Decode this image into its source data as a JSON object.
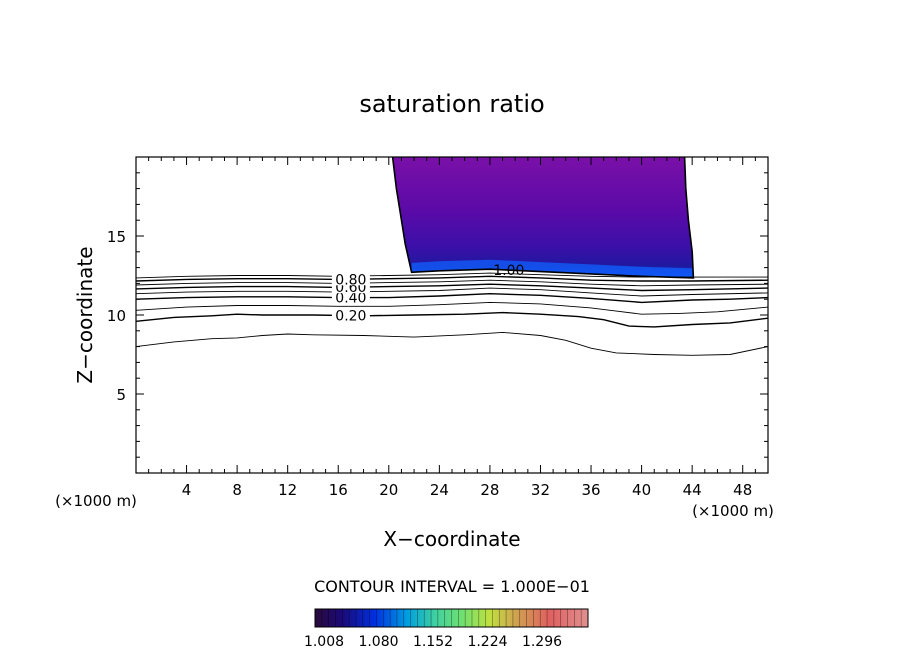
{
  "chart_data": {
    "type": "contour",
    "title": "saturation ratio",
    "xlabel": "X−coordinate",
    "ylabel": "Z−coordinate",
    "x_unit_left": "(×1000 m)",
    "x_unit_right": "(×1000 m)",
    "xlim": [
      0,
      50
    ],
    "ylim": [
      0,
      20
    ],
    "x_ticks": [
      4,
      8,
      12,
      16,
      20,
      24,
      28,
      32,
      36,
      40,
      44,
      48
    ],
    "x_tick_labels": [
      "4",
      "8",
      "12",
      "16",
      "20",
      "24",
      "28",
      "32",
      "36",
      "40",
      "44",
      "48"
    ],
    "y_ticks": [
      5,
      10,
      15
    ],
    "y_tick_labels": [
      "5",
      "10",
      "15"
    ],
    "contour_interval_text": "CONTOUR INTERVAL = 1.000E−01",
    "contour_levels": [
      {
        "value": 0.1,
        "label": "",
        "points": [
          [
            0,
            8.0
          ],
          [
            3,
            8.3
          ],
          [
            6,
            8.5
          ],
          [
            8,
            8.55
          ],
          [
            10,
            8.7
          ],
          [
            12,
            8.8
          ],
          [
            14,
            8.75
          ],
          [
            18,
            8.7
          ],
          [
            22,
            8.6
          ],
          [
            26,
            8.75
          ],
          [
            29,
            8.9
          ],
          [
            32,
            8.7
          ],
          [
            34,
            8.4
          ],
          [
            36,
            7.9
          ],
          [
            38,
            7.6
          ],
          [
            41,
            7.5
          ],
          [
            44,
            7.45
          ],
          [
            47,
            7.5
          ],
          [
            50,
            8.0
          ]
        ]
      },
      {
        "value": 0.2,
        "label": "0.20",
        "points": [
          [
            0,
            9.6
          ],
          [
            3,
            9.85
          ],
          [
            6,
            9.95
          ],
          [
            8,
            10.05
          ],
          [
            10,
            10.0
          ],
          [
            14,
            10.0
          ],
          [
            18,
            9.95
          ],
          [
            22,
            10.0
          ],
          [
            26,
            10.05
          ],
          [
            29,
            10.15
          ],
          [
            32,
            10.05
          ],
          [
            35,
            9.9
          ],
          [
            37,
            9.7
          ],
          [
            39,
            9.3
          ],
          [
            41,
            9.25
          ],
          [
            44,
            9.4
          ],
          [
            47,
            9.5
          ],
          [
            50,
            9.8
          ]
        ]
      },
      {
        "value": 0.3,
        "label": "",
        "points": [
          [
            0,
            10.3
          ],
          [
            4,
            10.5
          ],
          [
            8,
            10.6
          ],
          [
            12,
            10.6
          ],
          [
            16,
            10.55
          ],
          [
            20,
            10.55
          ],
          [
            24,
            10.65
          ],
          [
            28,
            10.8
          ],
          [
            32,
            10.7
          ],
          [
            36,
            10.45
          ],
          [
            38,
            10.25
          ],
          [
            40,
            10.05
          ],
          [
            43,
            10.1
          ],
          [
            46,
            10.2
          ],
          [
            50,
            10.5
          ]
        ]
      },
      {
        "value": 0.4,
        "label": "0.40",
        "points": [
          [
            0,
            11.0
          ],
          [
            4,
            11.1
          ],
          [
            8,
            11.15
          ],
          [
            12,
            11.15
          ],
          [
            16,
            11.1
          ],
          [
            20,
            11.1
          ],
          [
            24,
            11.2
          ],
          [
            28,
            11.35
          ],
          [
            32,
            11.25
          ],
          [
            36,
            11.05
          ],
          [
            40,
            10.8
          ],
          [
            44,
            10.95
          ],
          [
            47,
            11.0
          ],
          [
            50,
            11.1
          ]
        ]
      },
      {
        "value": 0.5,
        "label": "",
        "points": [
          [
            0,
            11.35
          ],
          [
            4,
            11.45
          ],
          [
            8,
            11.5
          ],
          [
            12,
            11.5
          ],
          [
            16,
            11.45
          ],
          [
            20,
            11.5
          ],
          [
            24,
            11.55
          ],
          [
            28,
            11.7
          ],
          [
            32,
            11.6
          ],
          [
            36,
            11.4
          ],
          [
            40,
            11.2
          ],
          [
            44,
            11.3
          ],
          [
            50,
            11.4
          ]
        ]
      },
      {
        "value": 0.6,
        "label": "0.60",
        "points": [
          [
            0,
            11.65
          ],
          [
            4,
            11.75
          ],
          [
            8,
            11.8
          ],
          [
            12,
            11.8
          ],
          [
            16,
            11.75
          ],
          [
            20,
            11.8
          ],
          [
            24,
            11.85
          ],
          [
            28,
            11.95
          ],
          [
            32,
            11.85
          ],
          [
            36,
            11.7
          ],
          [
            40,
            11.55
          ],
          [
            44,
            11.6
          ],
          [
            50,
            11.7
          ]
        ]
      },
      {
        "value": 0.7,
        "label": "",
        "points": [
          [
            0,
            11.9
          ],
          [
            4,
            12.0
          ],
          [
            8,
            12.05
          ],
          [
            12,
            12.05
          ],
          [
            16,
            12.0
          ],
          [
            20,
            12.05
          ],
          [
            24,
            12.1
          ],
          [
            28,
            12.2
          ],
          [
            32,
            12.1
          ],
          [
            36,
            11.95
          ],
          [
            40,
            11.85
          ],
          [
            44,
            11.9
          ],
          [
            50,
            11.95
          ]
        ]
      },
      {
        "value": 0.8,
        "label": "0.80",
        "points": [
          [
            0,
            12.15
          ],
          [
            4,
            12.25
          ],
          [
            8,
            12.3
          ],
          [
            12,
            12.3
          ],
          [
            16,
            12.25
          ],
          [
            20,
            12.3
          ],
          [
            24,
            12.35
          ],
          [
            28,
            12.45
          ],
          [
            32,
            12.35
          ],
          [
            36,
            12.2
          ],
          [
            40,
            12.15
          ],
          [
            44,
            12.15
          ],
          [
            50,
            12.2
          ]
        ]
      },
      {
        "value": 0.9,
        "label": "",
        "points": [
          [
            0,
            12.35
          ],
          [
            4,
            12.45
          ],
          [
            8,
            12.5
          ],
          [
            12,
            12.5
          ],
          [
            16,
            12.45
          ],
          [
            20,
            12.5
          ],
          [
            24,
            12.55
          ],
          [
            28,
            12.65
          ],
          [
            32,
            12.55
          ],
          [
            36,
            12.45
          ],
          [
            40,
            12.4
          ],
          [
            44,
            12.4
          ],
          [
            50,
            12.4
          ]
        ]
      },
      {
        "value": 1.0,
        "label": "1.00",
        "points": [
          [
            20.3,
            20
          ],
          [
            20.6,
            18
          ],
          [
            20.9,
            16.5
          ],
          [
            21.3,
            14.5
          ],
          [
            21.8,
            12.7
          ],
          [
            24,
            12.8
          ],
          [
            28,
            12.9
          ],
          [
            32,
            12.75
          ],
          [
            36,
            12.6
          ],
          [
            40,
            12.45
          ],
          [
            44.1,
            12.35
          ],
          [
            44.0,
            14
          ],
          [
            43.7,
            16
          ],
          [
            43.5,
            18
          ],
          [
            43.4,
            20
          ]
        ]
      }
    ],
    "colorbar": {
      "tick_labels": [
        "1.008",
        "1.080",
        "1.152",
        "1.224",
        "1.296"
      ],
      "colors": [
        "#2a0a3a",
        "#1a0a7a",
        "#0030e0",
        "#00a0e0",
        "#40d0a0",
        "#70e070",
        "#c0e040",
        "#d0a050",
        "#e06060",
        "#e08080",
        "#e09090"
      ]
    }
  }
}
